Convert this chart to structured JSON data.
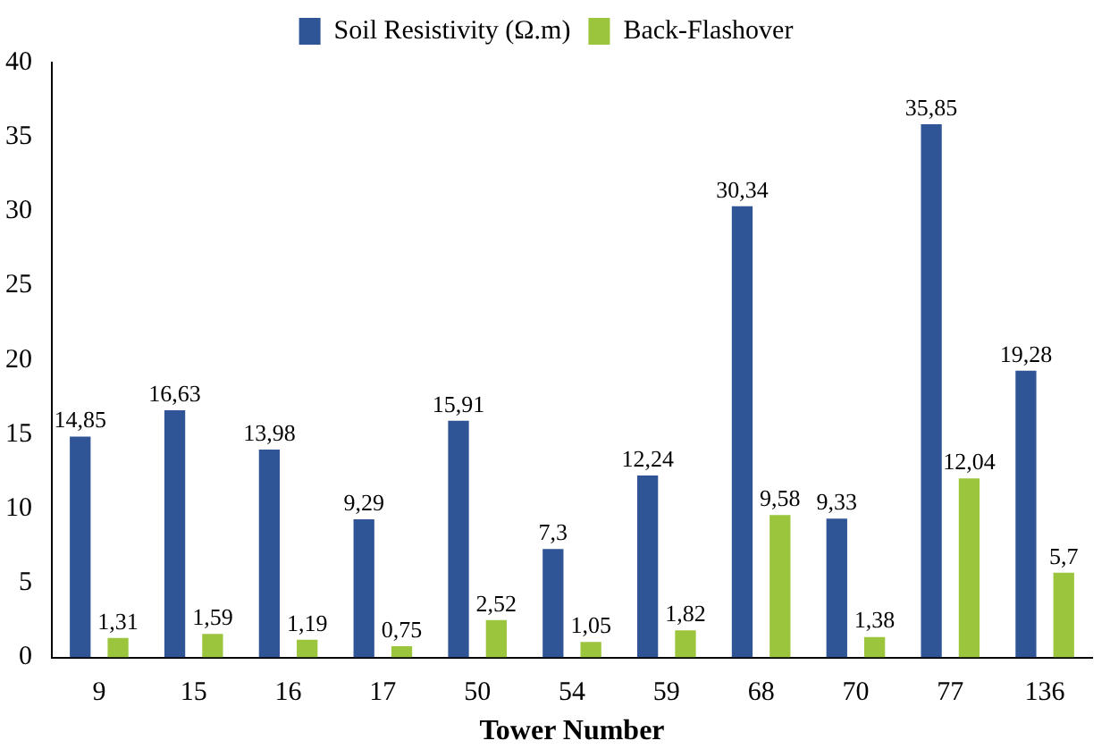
{
  "chart_data": {
    "type": "bar",
    "xlabel": "Tower Number",
    "categories": [
      "9",
      "15",
      "16",
      "17",
      "50",
      "54",
      "59",
      "68",
      "70",
      "77",
      "136"
    ],
    "series": [
      {
        "name": "Soil Resistivity (Ω.m)",
        "color": "#2f5596",
        "values": [
          14.85,
          16.63,
          13.98,
          9.29,
          15.91,
          7.3,
          12.24,
          30.34,
          9.33,
          35.85,
          19.28
        ],
        "value_labels": [
          "14,85",
          "16,63",
          "13,98",
          "9,29",
          "15,91",
          "7,3",
          "12,24",
          "30,34",
          "9,33",
          "35,85",
          "19,28"
        ]
      },
      {
        "name": "Back-Flashover",
        "color": "#9bc53d",
        "values": [
          1.31,
          1.59,
          1.19,
          0.75,
          2.52,
          1.05,
          1.82,
          9.58,
          1.38,
          12.04,
          5.7
        ],
        "value_labels": [
          "1,31",
          "1,59",
          "1,19",
          "0,75",
          "2,52",
          "1,05",
          "1,82",
          "9,58",
          "1,38",
          "12,04",
          "5,7"
        ]
      }
    ],
    "ylim": [
      0,
      40
    ],
    "yticks": [
      0,
      5,
      10,
      15,
      20,
      25,
      30,
      35,
      40
    ],
    "grid": false,
    "legend": "top"
  }
}
